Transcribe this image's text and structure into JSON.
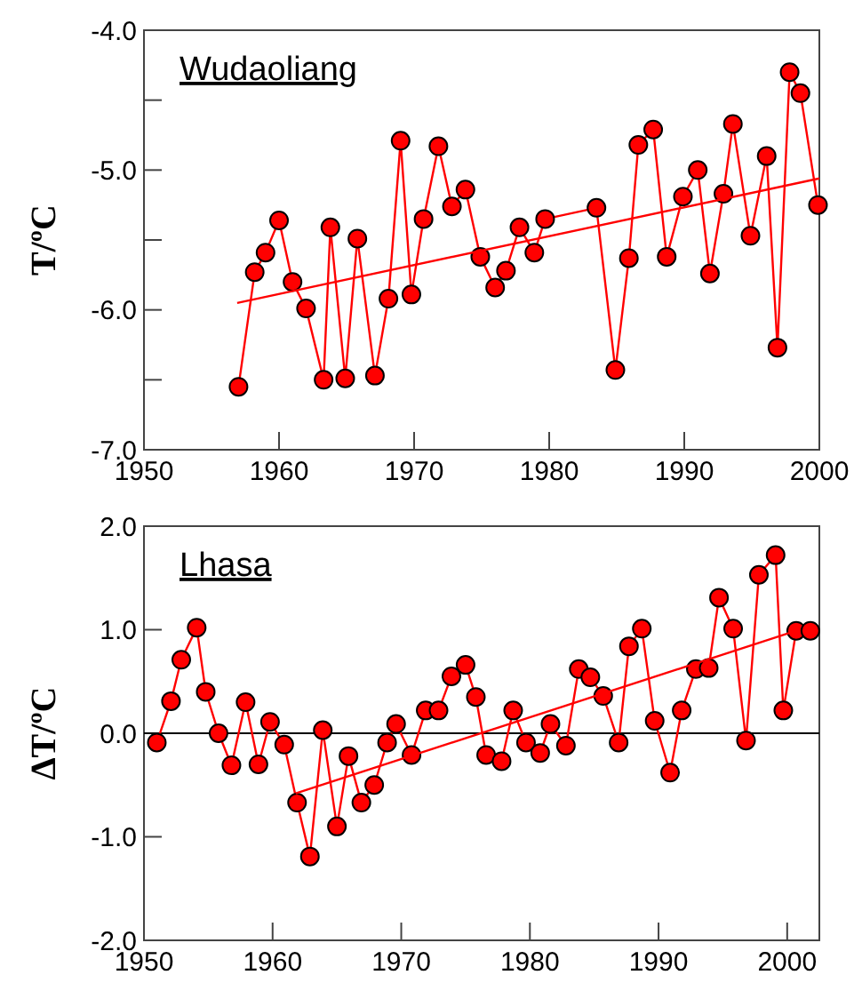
{
  "chart_data": [
    {
      "type": "line",
      "title": "Wudaoliang",
      "ylabel": "T/ºC",
      "xlim": [
        1950,
        2000
      ],
      "xticks": [
        1950,
        1960,
        1970,
        1980,
        1990,
        2000
      ],
      "ylim": [
        -7,
        -4
      ],
      "yticks": [
        {
          "value": -4,
          "label": "-4.0"
        },
        {
          "value": -4.5,
          "label": null
        },
        {
          "value": -5,
          "label": "-5.0"
        },
        {
          "value": -5.5,
          "label": null
        },
        {
          "value": -6,
          "label": "-6.0"
        },
        {
          "value": -6.5,
          "label": null
        },
        {
          "value": -7,
          "label": "-7.0"
        }
      ],
      "grid": false,
      "series": [
        {
          "color": "#ff0000",
          "marker": "circle",
          "x": [
            1957,
            1958.2,
            1959,
            1960,
            1961,
            1962,
            1963.3,
            1963.8,
            1964.9,
            1965.8,
            1967.1,
            1968.1,
            1969,
            1969.8,
            1970.7,
            1971.8,
            1972.8,
            1973.8,
            1974.9,
            1976,
            1976.8,
            1977.8,
            1978.9,
            1979.7,
            1983.5,
            1984.9,
            1985.9,
            1986.6,
            1987.7,
            1988.7,
            1989.9,
            1991,
            1991.9,
            1992.9,
            1993.6,
            1994.9,
            1996.1,
            1996.9,
            1997.8,
            1998.6,
            1999.9
          ],
          "values": [
            -6.55,
            -5.73,
            -5.59,
            -5.36,
            -5.8,
            -5.99,
            -6.5,
            -5.41,
            -6.49,
            -5.49,
            -6.47,
            -5.92,
            -4.79,
            -5.89,
            -5.35,
            -4.83,
            -5.26,
            -5.14,
            -5.62,
            -5.84,
            -5.72,
            -5.41,
            -5.59,
            -5.35,
            -5.27,
            -6.43,
            -5.63,
            -4.82,
            -4.71,
            -5.62,
            -5.19,
            -5.0,
            -5.74,
            -5.17,
            -4.67,
            -5.47,
            -4.9,
            -6.27,
            -4.3,
            -4.45,
            -5.25
          ]
        },
        {
          "color": "#ff0000",
          "marker": "none",
          "x": [
            1956.9,
            2000
          ],
          "values": [
            -5.95,
            -5.06
          ]
        }
      ]
    },
    {
      "type": "line",
      "title": "Lhasa",
      "ylabel": "ΔT/ºC",
      "xlim": [
        1950,
        2002.5
      ],
      "xticks": [
        1950,
        1960,
        1970,
        1980,
        1990,
        2000
      ],
      "ylim": [
        -2,
        2
      ],
      "yticks": [
        {
          "value": 2,
          "label": "2.0"
        },
        {
          "value": 1,
          "label": "1.0"
        },
        {
          "value": 0,
          "label": "0.0"
        },
        {
          "value": -1,
          "label": "-1.0"
        },
        {
          "value": -2,
          "label": "-2.0"
        }
      ],
      "grid": false,
      "ref_lines": [
        {
          "axis": "y",
          "value": 0,
          "color": "#000000"
        }
      ],
      "series": [
        {
          "color": "#ff0000",
          "marker": "circle",
          "x": [
            1951,
            1952.1,
            1952.9,
            1954.1,
            1954.8,
            1955.8,
            1956.8,
            1957.9,
            1958.9,
            1959.8,
            1960.9,
            1961.9,
            1962.9,
            1963.9,
            1965,
            1965.9,
            1966.9,
            1967.9,
            1968.9,
            1969.6,
            1970.8,
            1971.9,
            1972.9,
            1973.9,
            1975,
            1975.8,
            1976.6,
            1977.8,
            1978.7,
            1979.7,
            1980.8,
            1981.6,
            1982.8,
            1983.8,
            1984.7,
            1985.7,
            1986.9,
            1987.7,
            1988.7,
            1989.7,
            1990.9,
            1991.8,
            1992.9,
            1993.9,
            1994.7,
            1995.8,
            1996.8,
            1997.8,
            1999.1,
            1999.7,
            2000.7,
            2001.8
          ],
          "values": [
            -0.09,
            0.31,
            0.71,
            1.02,
            0.4,
            0.0,
            -0.31,
            0.3,
            -0.3,
            0.11,
            -0.11,
            -0.67,
            -1.19,
            0.03,
            -0.9,
            -0.22,
            -0.67,
            -0.5,
            -0.09,
            0.09,
            -0.21,
            0.22,
            0.22,
            0.55,
            0.66,
            0.35,
            -0.21,
            -0.27,
            0.22,
            -0.09,
            -0.19,
            0.09,
            -0.12,
            0.62,
            0.54,
            0.36,
            -0.09,
            0.84,
            1.01,
            0.12,
            -0.38,
            0.22,
            0.62,
            0.63,
            1.31,
            1.01,
            -0.07,
            1.53,
            1.72,
            0.22,
            0.99,
            0.99
          ]
        },
        {
          "color": "#ff0000",
          "marker": "none",
          "x": [
            1961.8,
            2000.7
          ],
          "values": [
            -0.58,
            0.99
          ]
        }
      ]
    }
  ]
}
